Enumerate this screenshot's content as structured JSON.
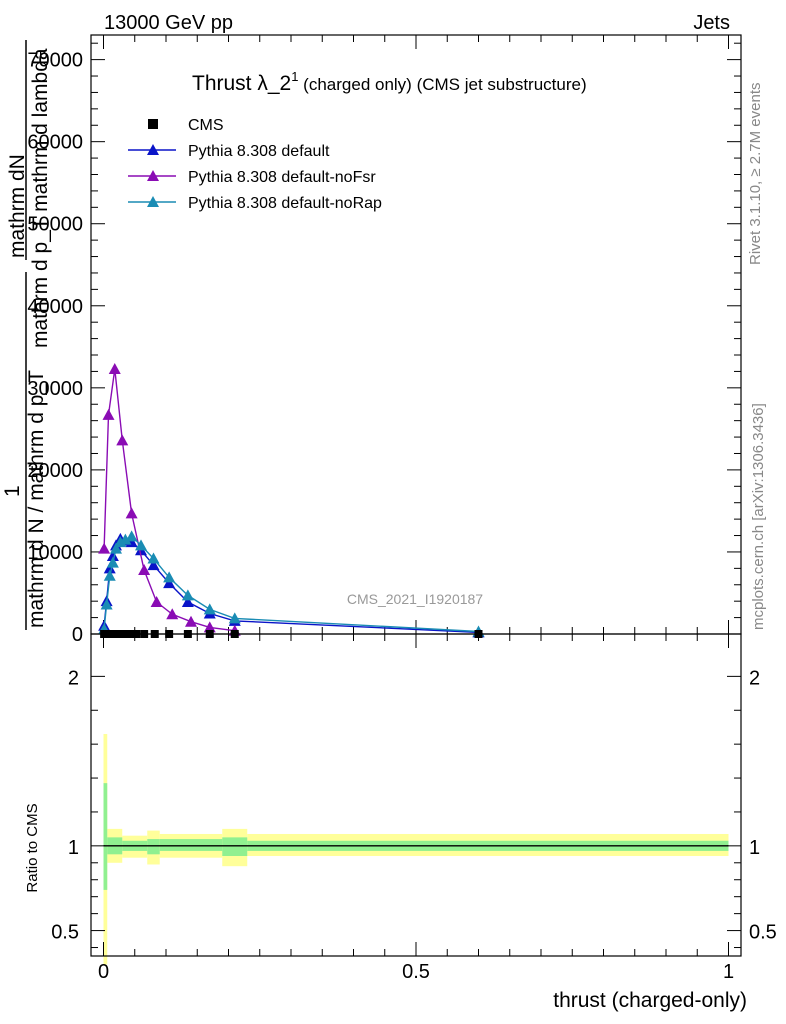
{
  "header": {
    "energy_label": "13000 GeV pp",
    "category_label": "Jets"
  },
  "side_labels": {
    "rivet": "Rivet 3.1.10, ≥ 2.7M events",
    "mcplots": "mcplots.cern.ch [arXiv:1306.3436]"
  },
  "watermark": "CMS_2021_I1920187",
  "colors": {
    "cms": "#000000",
    "default": "#0a14c8",
    "noFsr": "#8a0cb4",
    "noRap": "#1a8cb4",
    "band_outer": "#ffff9a",
    "band_inner": "#90f090"
  },
  "chart_data": [
    {
      "type": "line",
      "title": "Thrust λ_2",
      "title_sup": "1",
      "title_suffix": " (charged only) (CMS jet substructure)",
      "ylabel_numerator": "mathrm dN",
      "ylabel_denominator_mid": "mathrm d p_T mathrm d lambda",
      "ylabel_one": "1",
      "ylabel_main": "mathrm d N / mathrm d p_T",
      "xlim": [
        -0.02,
        1.02
      ],
      "ylim": [
        0,
        73000
      ],
      "yticks": [
        0,
        10000,
        20000,
        30000,
        40000,
        50000,
        60000,
        70000
      ],
      "ytick_labels": [
        "0",
        "10000",
        "20000",
        "30000",
        "40000",
        "50000",
        "60000",
        "70000"
      ],
      "legend": [
        "CMS",
        "Pythia 8.308 default",
        "Pythia 8.308 default-noFsr",
        "Pythia 8.308 default-noRap"
      ],
      "legend_position": "top-left",
      "series": [
        {
          "name": "CMS",
          "x": [
            0.001,
            0.004,
            0.008,
            0.013,
            0.018,
            0.025,
            0.033,
            0.042,
            0.052,
            0.065,
            0.082,
            0.105,
            0.135,
            0.17,
            0.21,
            0.6
          ],
          "values": [
            0,
            0,
            0,
            0,
            0,
            0,
            0,
            0,
            0,
            0,
            0,
            0,
            0,
            0,
            0,
            0
          ]
        },
        {
          "name": "Pythia 8.308 default",
          "x": [
            0.001,
            0.005,
            0.01,
            0.015,
            0.02,
            0.027,
            0.035,
            0.045,
            0.06,
            0.08,
            0.105,
            0.135,
            0.17,
            0.21,
            0.6
          ],
          "values": [
            1000,
            4000,
            8000,
            9500,
            10800,
            11600,
            11400,
            11200,
            10200,
            8400,
            6200,
            3900,
            2500,
            1600,
            200
          ]
        },
        {
          "name": "Pythia 8.308 default-noFsr",
          "x": [
            0.001,
            0.008,
            0.018,
            0.03,
            0.045,
            0.065,
            0.085,
            0.11,
            0.14,
            0.17,
            0.21
          ],
          "values": [
            10400,
            26700,
            32300,
            23600,
            14700,
            7800,
            3900,
            2400,
            1500,
            800,
            400
          ]
        },
        {
          "name": "Pythia 8.308 default-noRap",
          "x": [
            0.001,
            0.005,
            0.01,
            0.015,
            0.02,
            0.027,
            0.035,
            0.045,
            0.06,
            0.08,
            0.105,
            0.135,
            0.17,
            0.21,
            0.6
          ],
          "values": [
            600,
            3600,
            7100,
            8700,
            10400,
            11200,
            11500,
            11900,
            10800,
            9200,
            6900,
            4700,
            3000,
            1900,
            300
          ]
        }
      ]
    },
    {
      "type": "area",
      "ylabel": "Ratio to CMS",
      "xlabel": "thrust (charged-only)",
      "xlim": [
        -0.02,
        1.02
      ],
      "ylim": [
        0.35,
        2.25
      ],
      "xticks": [
        0,
        0.5,
        1
      ],
      "xtick_labels": [
        "0",
        "0.5",
        "1"
      ],
      "yticks": [
        0.5,
        1,
        2
      ],
      "ytick_labels": [
        "0.5",
        "1",
        "2"
      ],
      "reference_line": 1,
      "bins": [
        {
          "x0": 0.0,
          "x1": 0.006,
          "outer": [
            0.3,
            1.66
          ],
          "inner": [
            0.74,
            1.37
          ]
        },
        {
          "x0": 0.006,
          "x1": 0.03,
          "outer": [
            0.9,
            1.1
          ],
          "inner": [
            0.95,
            1.05
          ]
        },
        {
          "x0": 0.03,
          "x1": 0.07,
          "outer": [
            0.93,
            1.06
          ],
          "inner": [
            0.97,
            1.03
          ]
        },
        {
          "x0": 0.07,
          "x1": 0.09,
          "outer": [
            0.89,
            1.09
          ],
          "inner": [
            0.95,
            1.04
          ]
        },
        {
          "x0": 0.09,
          "x1": 0.19,
          "outer": [
            0.93,
            1.07
          ],
          "inner": [
            0.97,
            1.04
          ]
        },
        {
          "x0": 0.19,
          "x1": 0.23,
          "outer": [
            0.88,
            1.1
          ],
          "inner": [
            0.94,
            1.05
          ]
        },
        {
          "x0": 0.23,
          "x1": 1.0,
          "outer": [
            0.94,
            1.07
          ],
          "inner": [
            0.97,
            1.03
          ]
        }
      ]
    }
  ]
}
